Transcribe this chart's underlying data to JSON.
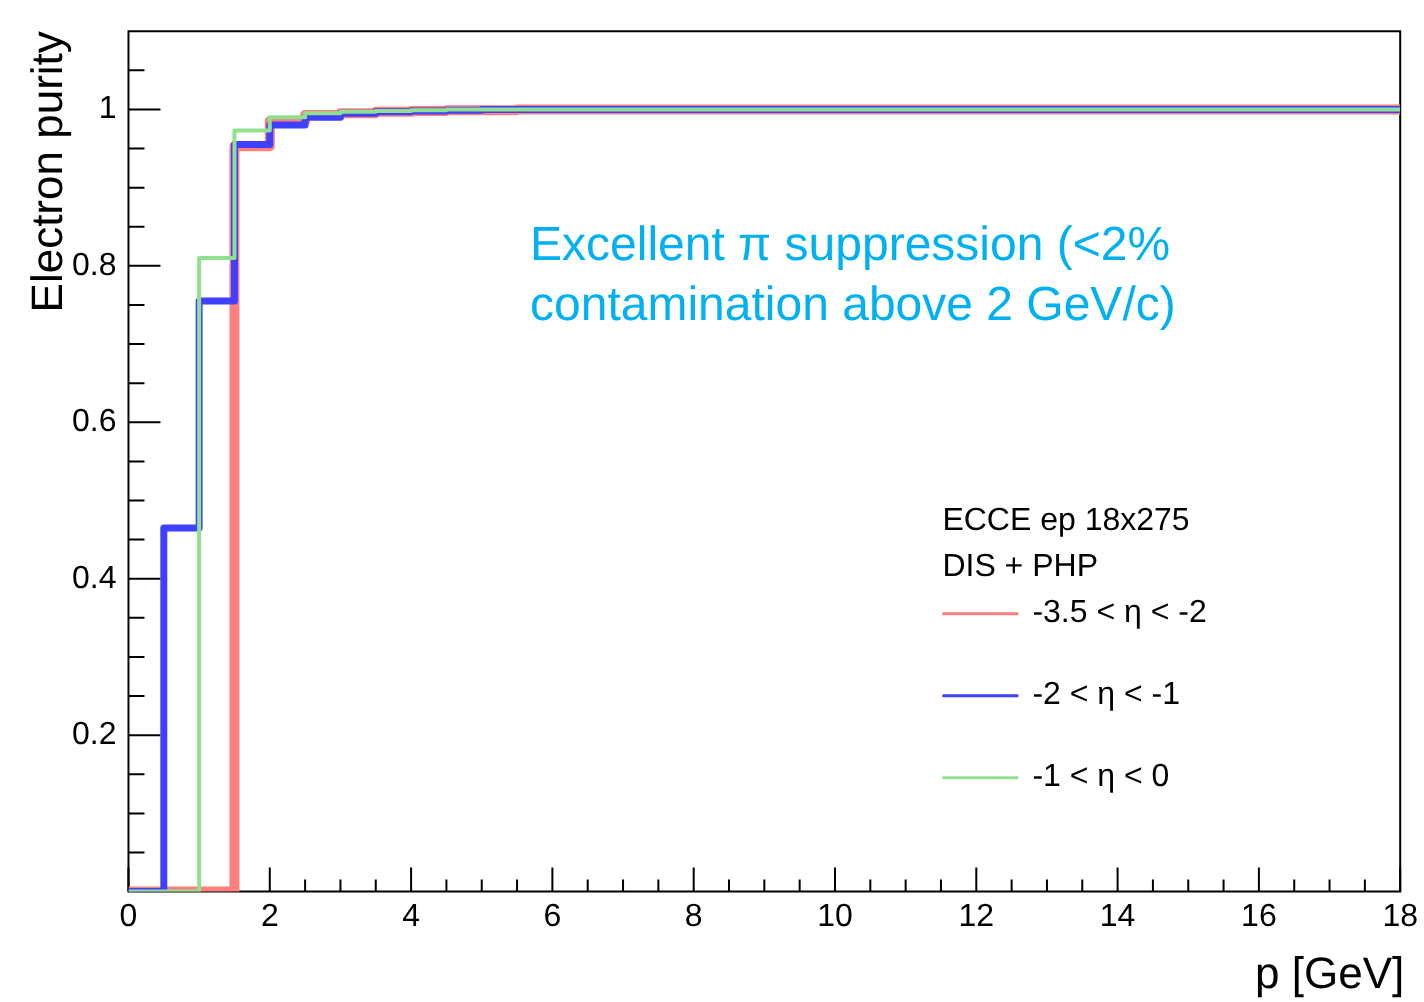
{
  "chart_data": {
    "type": "step",
    "xlabel": "p [GeV]",
    "ylabel": "Electron purity",
    "legend_title": "ECCE ep 18x275\nDIS + PHP",
    "legend": "bottom right",
    "grid": false,
    "annotations": [
      "Excellent π suppression (<2% contamination above 2 GeV/c)"
    ],
    "x": [
      0,
      0.5,
      1,
      1.5,
      2,
      2.5,
      3,
      3.5,
      4,
      4.5,
      5,
      5.5,
      6,
      6.5,
      7,
      7.5,
      8,
      8.5,
      9,
      9.5,
      10,
      10.5,
      11,
      11.5,
      12,
      12.5,
      13,
      13.5,
      14,
      14.5,
      15,
      15.5,
      16,
      16.5,
      17,
      17.5,
      18
    ],
    "series": [
      {
        "name": "-3.5 < η < -2",
        "color": "#ff7f7f",
        "values": [
          0,
          0,
          0,
          0.953,
          0.985,
          0.993,
          0.995,
          0.997,
          0.998,
          0.999,
          0.999,
          1,
          1,
          1,
          1,
          1,
          1,
          1,
          1,
          1,
          1,
          1,
          1,
          1,
          1,
          1,
          1,
          1,
          1,
          1,
          1,
          1,
          1,
          1,
          1,
          1,
          1
        ]
      },
      {
        "name": "-2 < η < -1",
        "color": "#4040ff",
        "values": [
          0,
          0.465,
          0.755,
          0.955,
          0.98,
          0.99,
          0.995,
          0.997,
          0.998,
          0.999,
          1,
          1,
          1,
          1,
          1,
          1,
          1,
          1,
          1,
          1,
          1,
          1,
          1,
          1,
          1,
          1,
          1,
          1,
          1,
          1,
          1,
          1,
          1,
          1,
          1,
          1,
          1
        ]
      },
      {
        "name": "-1 < η < 0",
        "color": "#90e090",
        "values": [
          0,
          0,
          0.81,
          0.973,
          0.99,
          0.995,
          0.997,
          0.998,
          0.999,
          1,
          1,
          1,
          1,
          1,
          1,
          1,
          1,
          1,
          1,
          1,
          1,
          1,
          1,
          1,
          1,
          1,
          1,
          1,
          1,
          1,
          1,
          1,
          1,
          1,
          1,
          1,
          1
        ]
      }
    ],
    "xlim": [
      0,
      18
    ],
    "ylim": [
      0,
      1.1
    ],
    "xticks": [
      0,
      {
        "value": 0.5,
        "label": null
      },
      {
        "value": 1,
        "label": null
      },
      {
        "value": 1.5,
        "label": null
      },
      2,
      {
        "value": 2.5,
        "label": null
      },
      {
        "value": 3,
        "label": null
      },
      {
        "value": 3.5,
        "label": null
      },
      4,
      {
        "value": 4.5,
        "label": null
      },
      {
        "value": 5,
        "label": null
      },
      {
        "value": 5.5,
        "label": null
      },
      6,
      {
        "value": 6.5,
        "label": null
      },
      {
        "value": 7,
        "label": null
      },
      {
        "value": 7.5,
        "label": null
      },
      8,
      {
        "value": 8.5,
        "label": null
      },
      {
        "value": 9,
        "label": null
      },
      {
        "value": 9.5,
        "label": null
      },
      10,
      {
        "value": 10.5,
        "label": null
      },
      {
        "value": 11,
        "label": null
      },
      {
        "value": 11.5,
        "label": null
      },
      12,
      {
        "value": 12.5,
        "label": null
      },
      {
        "value": 13,
        "label": null
      },
      {
        "value": 13.5,
        "label": null
      },
      14,
      {
        "value": 14.5,
        "label": null
      },
      {
        "value": 15,
        "label": null
      },
      {
        "value": 15.5,
        "label": null
      },
      16,
      {
        "value": 16.5,
        "label": null
      },
      {
        "value": 17,
        "label": null
      },
      {
        "value": 17.5,
        "label": null
      },
      18
    ],
    "yticks": [
      {
        "value": 0.05,
        "label": null
      },
      {
        "value": 0.1,
        "label": null
      },
      {
        "value": 0.15,
        "label": null
      },
      0.2,
      {
        "value": 0.25,
        "label": null
      },
      {
        "value": 0.3,
        "label": null
      },
      {
        "value": 0.35,
        "label": null
      },
      0.4,
      {
        "value": 0.45,
        "label": null
      },
      {
        "value": 0.5,
        "label": null
      },
      {
        "value": 0.55,
        "label": null
      },
      0.6,
      {
        "value": 0.65,
        "label": null
      },
      {
        "value": 0.7,
        "label": null
      },
      {
        "value": 0.75,
        "label": null
      },
      0.8,
      {
        "value": 0.85,
        "label": null
      },
      {
        "value": 0.9,
        "label": null
      },
      {
        "value": 0.95,
        "label": null
      },
      1,
      {
        "value": 1.05,
        "label": null
      }
    ]
  }
}
